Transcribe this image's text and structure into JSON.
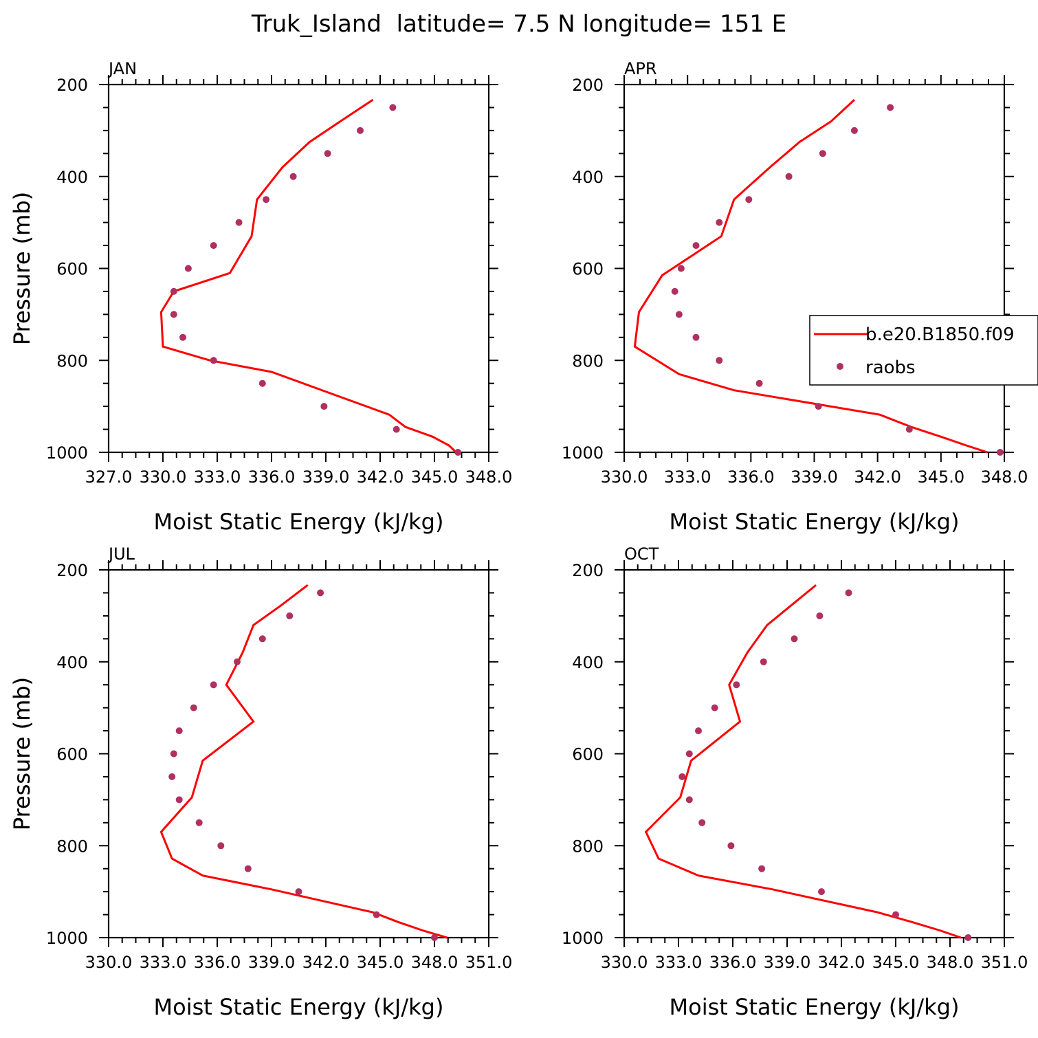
{
  "figure": {
    "title": "Truk_Island  latitude= 7.5 N longitude= 151 E"
  },
  "legend": {
    "model_label": "b.e20.B1850.f09",
    "obs_label": "raobs",
    "model_color": "#ff0000",
    "obs_color": "#b03060"
  },
  "chart_data": [
    {
      "type": "line",
      "panel_label": "JAN",
      "xlabel": "Moist Static Energy (kJ/kg)",
      "ylabel": "Pressure (mb)",
      "xlim": [
        327.0,
        348.0
      ],
      "ylim": [
        200,
        1000
      ],
      "y_inverted": true,
      "xtick_labels": [
        "327.0",
        "330.0",
        "333.0",
        "336.0",
        "339.0",
        "342.0",
        "345.0",
        "348.0"
      ],
      "ytick_labels": [
        "200",
        "400",
        "600",
        "800",
        "1000"
      ],
      "series": [
        {
          "name": "b.e20.B1850.f09",
          "style": "line",
          "color": "#ff0000",
          "x": [
            341.6,
            339.8,
            338.1,
            336.6,
            335.2,
            334.9,
            333.7,
            330.6,
            329.9,
            330.0,
            332.6,
            336.0,
            342.5,
            343.4,
            344.9,
            345.8,
            346.2
          ],
          "y": [
            233,
            280,
            325,
            380,
            450,
            530,
            610,
            650,
            695,
            770,
            800,
            825,
            918,
            945,
            966,
            985,
            1000
          ]
        },
        {
          "name": "raobs",
          "style": "markers",
          "color": "#b03060",
          "x": [
            342.7,
            340.9,
            339.1,
            337.2,
            335.7,
            334.2,
            332.8,
            331.4,
            330.6,
            330.6,
            331.1,
            332.8,
            335.5,
            338.9,
            342.9,
            346.3
          ],
          "y": [
            250,
            300,
            350,
            400,
            450,
            500,
            550,
            600,
            650,
            700,
            750,
            800,
            850,
            900,
            950,
            1000
          ]
        }
      ]
    },
    {
      "type": "line",
      "panel_label": "APR",
      "xlabel": "Moist Static Energy (kJ/kg)",
      "ylabel": "Pressure (mb)",
      "xlim": [
        330.0,
        348.0
      ],
      "ylim": [
        200,
        1000
      ],
      "y_inverted": true,
      "xtick_labels": [
        "330.0",
        "333.0",
        "336.0",
        "339.0",
        "342.0",
        "345.0",
        "348.0"
      ],
      "ytick_labels": [
        "200",
        "400",
        "600",
        "800",
        "1000"
      ],
      "series": [
        {
          "name": "b.e20.B1850.f09",
          "style": "line",
          "color": "#ff0000",
          "x": [
            340.9,
            339.8,
            338.3,
            336.9,
            335.2,
            334.6,
            331.8,
            330.7,
            330.5,
            332.6,
            335.2,
            342.1,
            343.6,
            345.0,
            346.2,
            347.2
          ],
          "y": [
            233,
            280,
            325,
            380,
            450,
            530,
            615,
            695,
            770,
            830,
            865,
            918,
            945,
            966,
            985,
            1000
          ]
        },
        {
          "name": "raobs",
          "style": "markers",
          "color": "#b03060",
          "x": [
            342.6,
            340.9,
            339.4,
            337.8,
            335.9,
            334.5,
            333.4,
            332.7,
            332.4,
            332.6,
            333.4,
            334.5,
            336.4,
            339.2,
            343.5,
            347.8
          ],
          "y": [
            250,
            300,
            350,
            400,
            450,
            500,
            550,
            600,
            650,
            700,
            750,
            800,
            850,
            900,
            950,
            1000
          ]
        }
      ]
    },
    {
      "type": "line",
      "panel_label": "JUL",
      "xlabel": "Moist Static Energy (kJ/kg)",
      "ylabel": "Pressure (mb)",
      "xlim": [
        330.0,
        351.0
      ],
      "ylim": [
        200,
        1000
      ],
      "y_inverted": true,
      "xtick_labels": [
        "330.0",
        "333.0",
        "336.0",
        "339.0",
        "342.0",
        "345.0",
        "348.0",
        "351.0"
      ],
      "ytick_labels": [
        "200",
        "400",
        "600",
        "800",
        "1000"
      ],
      "series": [
        {
          "name": "b.e20.B1850.f09",
          "style": "line",
          "color": "#ff0000",
          "x": [
            341.0,
            339.5,
            338.0,
            337.4,
            336.5,
            338.0,
            335.2,
            334.6,
            332.9,
            333.5,
            335.2,
            339.0,
            344.6,
            346.0,
            347.4,
            348.7
          ],
          "y": [
            233,
            278,
            320,
            380,
            450,
            530,
            615,
            695,
            770,
            828,
            865,
            895,
            945,
            966,
            985,
            1000
          ]
        },
        {
          "name": "raobs",
          "style": "markers",
          "color": "#b03060",
          "x": [
            341.7,
            340.0,
            338.5,
            337.1,
            335.8,
            334.7,
            333.9,
            333.6,
            333.5,
            333.9,
            335.0,
            336.2,
            337.7,
            340.5,
            344.8,
            348.0
          ],
          "y": [
            250,
            300,
            350,
            400,
            450,
            500,
            550,
            600,
            650,
            700,
            750,
            800,
            850,
            900,
            950,
            1000
          ]
        }
      ]
    },
    {
      "type": "line",
      "panel_label": "OCT",
      "xlabel": "Moist Static Energy (kJ/kg)",
      "ylabel": "Pressure (mb)",
      "xlim": [
        330.0,
        351.0
      ],
      "ylim": [
        200,
        1000
      ],
      "y_inverted": true,
      "xtick_labels": [
        "330.0",
        "333.0",
        "336.0",
        "339.0",
        "342.0",
        "345.0",
        "348.0",
        "351.0"
      ],
      "ytick_labels": [
        "200",
        "400",
        "600",
        "800",
        "1000"
      ],
      "series": [
        {
          "name": "b.e20.B1850.f09",
          "style": "line",
          "color": "#ff0000",
          "x": [
            340.6,
            339.2,
            337.9,
            336.8,
            335.8,
            336.4,
            333.7,
            333.1,
            331.2,
            331.9,
            334.1,
            338.2,
            344.0,
            345.9,
            347.5,
            348.6
          ],
          "y": [
            233,
            278,
            320,
            380,
            450,
            530,
            615,
            695,
            770,
            828,
            865,
            895,
            945,
            966,
            985,
            1000
          ]
        },
        {
          "name": "raobs",
          "style": "markers",
          "color": "#b03060",
          "x": [
            342.4,
            340.8,
            339.4,
            337.7,
            336.2,
            335.0,
            334.1,
            333.6,
            333.2,
            333.6,
            334.3,
            335.9,
            337.6,
            340.9,
            345.0,
            349.0
          ],
          "y": [
            250,
            300,
            350,
            400,
            450,
            500,
            550,
            600,
            650,
            700,
            750,
            800,
            850,
            900,
            950,
            1000
          ]
        }
      ]
    }
  ]
}
